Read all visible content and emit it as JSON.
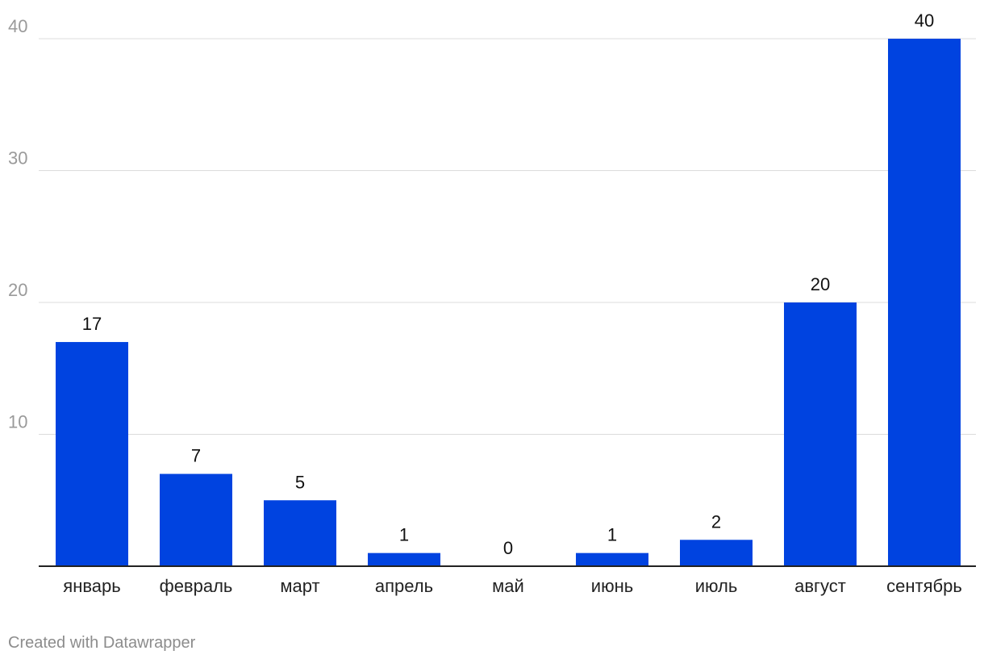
{
  "chart_data": {
    "type": "bar",
    "categories": [
      "январь",
      "февраль",
      "март",
      "апрель",
      "май",
      "июнь",
      "июль",
      "август",
      "сентябрь"
    ],
    "values": [
      17,
      7,
      5,
      1,
      0,
      1,
      2,
      20,
      40
    ],
    "yticks": [
      10,
      20,
      30,
      40
    ],
    "ylim": [
      0,
      40
    ],
    "grid": true,
    "bar_color": "#0043e0"
  },
  "footer": {
    "credit": "Created with Datawrapper"
  }
}
